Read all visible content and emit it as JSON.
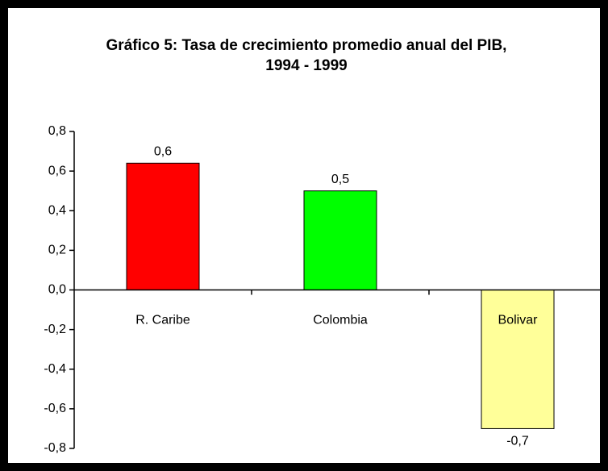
{
  "chart_data": {
    "type": "bar",
    "title": [
      "Gráfico 5: Tasa de crecimiento promedio anual del PIB,",
      "1994 - 1999"
    ],
    "categories": [
      "R. Caribe",
      "Colombia",
      "Bolivar"
    ],
    "values": [
      0.64,
      0.5,
      -0.7
    ],
    "value_labels": [
      "0,6",
      "0,5",
      "-0,7"
    ],
    "colors": [
      "#ff0000",
      "#00ff00",
      "#ffff99"
    ],
    "ylim": [
      -0.8,
      0.8
    ],
    "yticks": [
      {
        "value": -0.8,
        "label": "-0,8"
      },
      {
        "value": -0.6,
        "label": "-0,6"
      },
      {
        "value": -0.4,
        "label": "-0,4"
      },
      {
        "value": -0.2,
        "label": "-0,2"
      },
      {
        "value": 0,
        "label": "0,0"
      },
      {
        "value": 0.2,
        "label": "0,2"
      },
      {
        "value": 0.4,
        "label": "0,4"
      },
      {
        "value": 0.6,
        "label": "0,6"
      },
      {
        "value": 0.8,
        "label": "0,8"
      }
    ],
    "grid": false
  }
}
